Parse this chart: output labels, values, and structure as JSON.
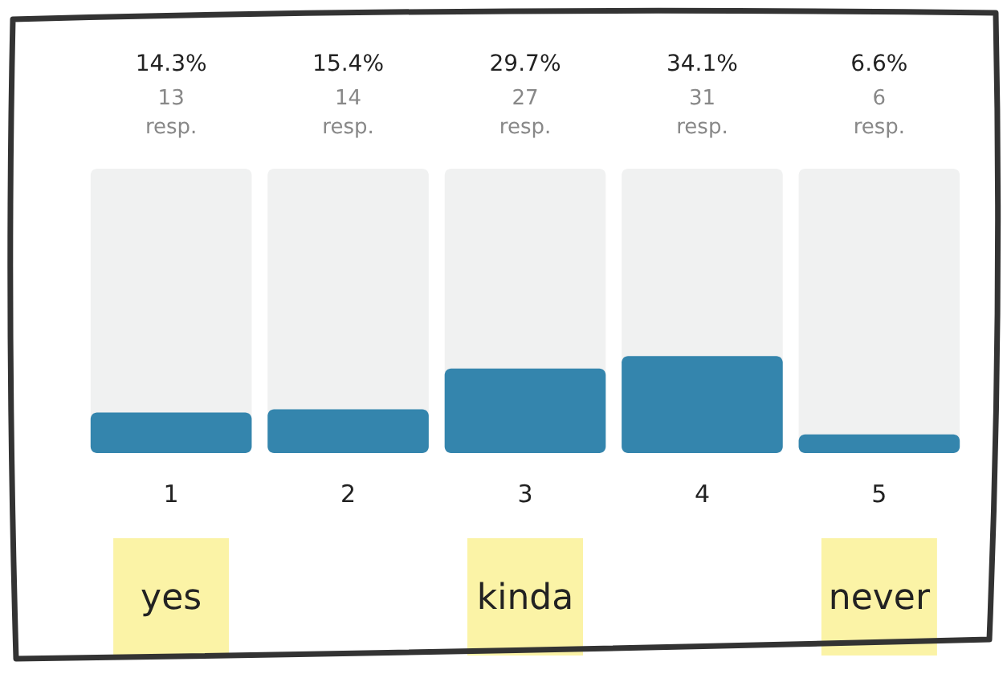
{
  "chart_data": {
    "type": "bar",
    "categories": [
      "1",
      "2",
      "3",
      "4",
      "5"
    ],
    "values": [
      14.3,
      15.4,
      29.7,
      34.1,
      6.6
    ],
    "value_labels": [
      "14.3%",
      "15.4%",
      "29.7%",
      "34.1%",
      "6.6%"
    ],
    "color": "#3485ad",
    "ylim": [
      0,
      100
    ],
    "tick_labels": "x",
    "annotations": [
      "13 resp.",
      "14 resp.",
      "27 resp.",
      "31 resp.",
      "6 resp.",
      "yes",
      "kinda",
      "never"
    ]
  }
}
